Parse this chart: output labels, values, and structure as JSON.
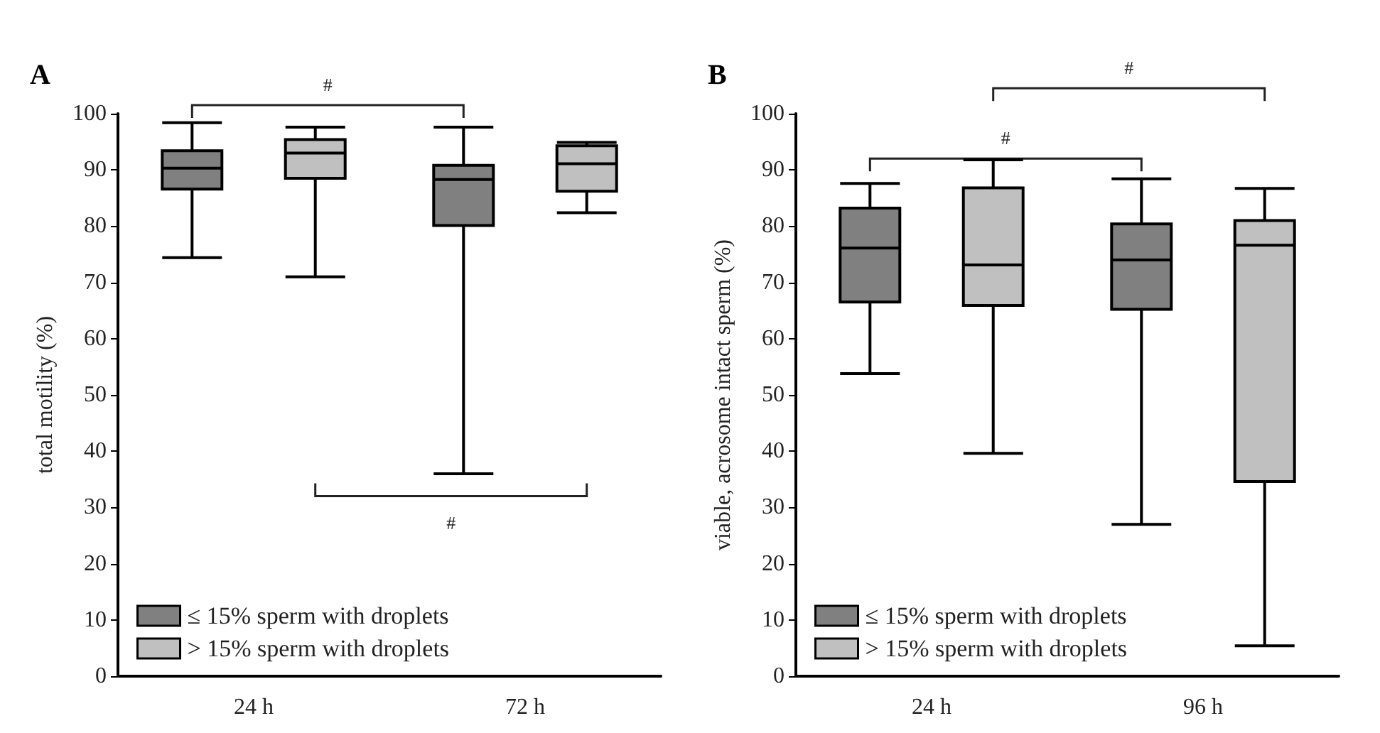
{
  "chart_data": [
    {
      "type": "box",
      "title": "A",
      "ylabel": "total motility (%)",
      "categories": [
        "24 h",
        "72 h"
      ],
      "ylim": [
        0,
        100
      ],
      "yticks": [
        0,
        10,
        20,
        30,
        40,
        50,
        60,
        70,
        80,
        90,
        100
      ],
      "grid": false,
      "legend": "bottom left",
      "annotations": [
        "#",
        "#"
      ],
      "series": [
        {
          "name": "≤ 15% sperm with droplets",
          "color": "#808080",
          "boxes": [
            {
              "low": 74.4,
              "q1": 86.6,
              "median": 90.3,
              "q3": 93.4,
              "high": 98.4
            },
            {
              "low": 36,
              "q1": 80.1,
              "median": 88.3,
              "q3": 90.8,
              "high": 97.6
            }
          ]
        },
        {
          "name": "> 15% sperm with droplets",
          "color": "#c0c0c0",
          "boxes": [
            {
              "low": 71,
              "q1": 88.5,
              "median": 93,
              "q3": 95.4,
              "high": 97.6
            },
            {
              "low": 82.4,
              "q1": 86.2,
              "median": 91.1,
              "q3": 94.3,
              "high": 94.9
            }
          ]
        }
      ]
    },
    {
      "type": "box",
      "title": "B",
      "ylabel": "viable, acrosome intact sperm (%)",
      "categories": [
        "24 h",
        "96 h"
      ],
      "ylim": [
        0,
        100
      ],
      "yticks": [
        0,
        10,
        20,
        30,
        40,
        50,
        60,
        70,
        80,
        90,
        100
      ],
      "grid": false,
      "legend": "bottom left",
      "annotations": [
        "#",
        "#"
      ],
      "series": [
        {
          "name": "≤ 15% sperm with droplets",
          "color": "#808080",
          "boxes": [
            {
              "low": 53.8,
              "q1": 66.5,
              "median": 76.1,
              "q3": 83.2,
              "high": 87.6
            },
            {
              "low": 27,
              "q1": 65.2,
              "median": 74,
              "q3": 80.4,
              "high": 88.4
            }
          ]
        },
        {
          "name": "> 15% sperm with droplets",
          "color": "#c0c0c0",
          "boxes": [
            {
              "low": 39.6,
              "q1": 65.9,
              "median": 73.1,
              "q3": 86.8,
              "high": 91.8
            },
            {
              "low": 5.4,
              "q1": 34.6,
              "median": 76.6,
              "q3": 81,
              "high": 86.7
            }
          ]
        }
      ]
    }
  ]
}
